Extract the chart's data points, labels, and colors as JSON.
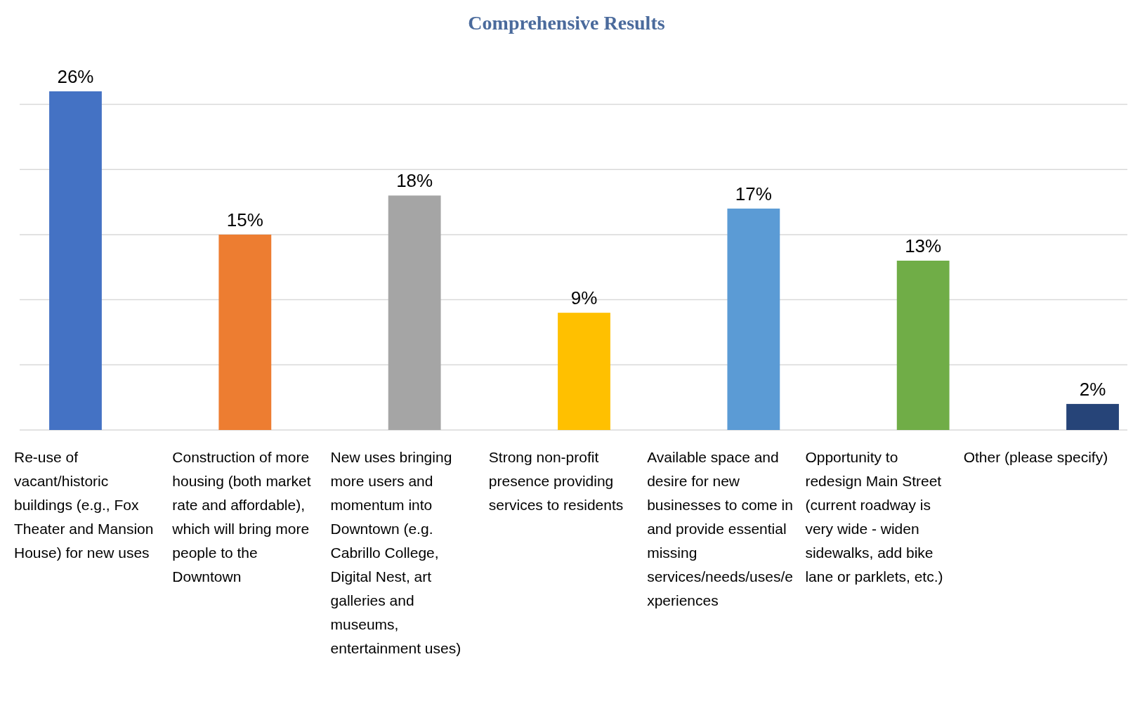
{
  "chart_data": {
    "type": "bar",
    "title": "Comprehensive Results",
    "categories": [
      "Re-use of vacant/historic buildings (e.g., Fox Theater and Mansion House) for new uses",
      "Construction of more housing (both market rate and affordable), which will bring more people to the Downtown",
      "New uses bringing more users and momentum into Downtown (e.g. Cabrillo College, Digital Nest, art galleries and museums, entertainment uses)",
      "Strong non-profit presence providing services to residents",
      "Available space and desire for new businesses to come in and provide essential missing services/needs/uses/experiences",
      "Opportunity to redesign Main Street (current roadway is very wide - widen sidewalks, add bike lane or parklets, etc.)",
      "Other (please specify)"
    ],
    "values": [
      26,
      15,
      18,
      9,
      17,
      13,
      2
    ],
    "value_labels": [
      "26%",
      "15%",
      "18%",
      "9%",
      "17%",
      "13%",
      "2%"
    ],
    "colors": [
      "#4472c4",
      "#ed7d31",
      "#a5a5a5",
      "#ffc000",
      "#5b9bd5",
      "#70ad47",
      "#264478"
    ],
    "yticks": [
      {
        "value": 0,
        "label": null
      },
      {
        "value": 5,
        "label": null
      },
      {
        "value": 10,
        "label": null
      },
      {
        "value": 15,
        "label": null
      },
      {
        "value": 20,
        "label": null
      },
      {
        "value": 25,
        "label": null
      }
    ],
    "grid": "y",
    "tick_labels": "x"
  }
}
